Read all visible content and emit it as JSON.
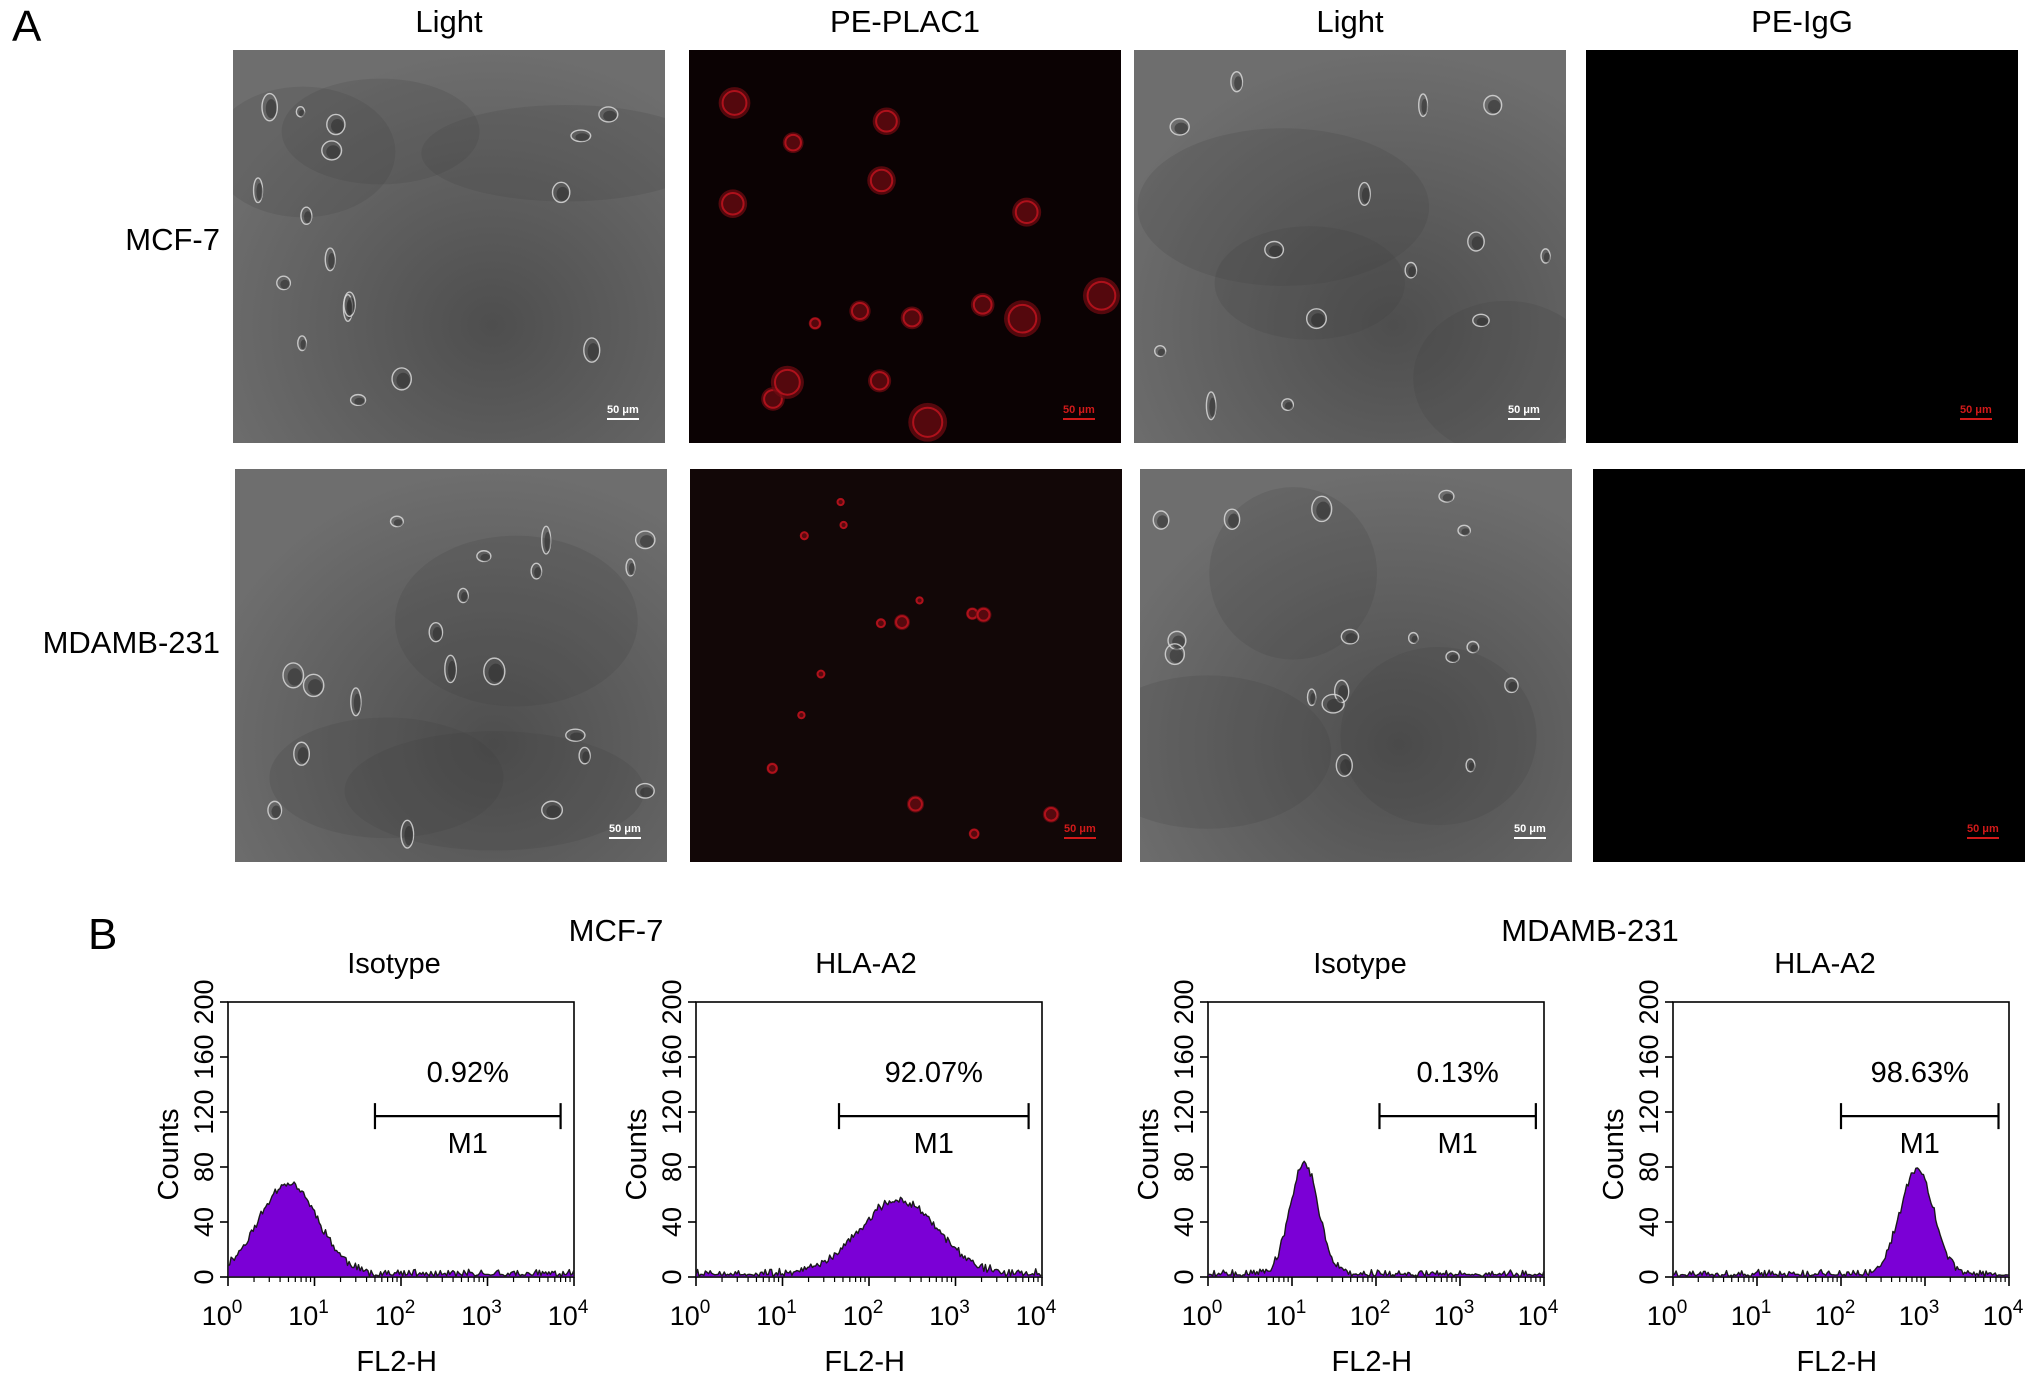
{
  "panel_a": {
    "letter": "A",
    "columns": [
      "Light",
      "PE-PLAC1",
      "Light",
      "PE-IgG"
    ],
    "rows": [
      "MCF-7",
      "MDAMB-231"
    ],
    "scale_bar": "50 μm",
    "image_kinds": [
      "brightfield",
      "red-fluorescence",
      "brightfield",
      "dark"
    ]
  },
  "panel_b": {
    "letter": "B",
    "groups": [
      {
        "title": "MCF-7"
      },
      {
        "title": "MDAMB-231"
      }
    ]
  },
  "chart_data": [
    {
      "type": "area",
      "group": "MCF-7",
      "title": "Isotype",
      "xlabel": "FL2-H",
      "ylabel": "Counts",
      "xscale": "log",
      "xlim": [
        1,
        10000
      ],
      "ylim": [
        0,
        200
      ],
      "xticks": [
        "10^0",
        "10^1",
        "10^2",
        "10^3",
        "10^4"
      ],
      "yticks": [
        "0",
        "40",
        "80",
        "120",
        "160",
        "200"
      ],
      "gate": {
        "label": "M1",
        "x": [
          50,
          7000
        ],
        "percent": "0.92%"
      },
      "peak": {
        "x": 5,
        "y": 66,
        "spread": 0.34
      },
      "color": "#7b00d6"
    },
    {
      "type": "area",
      "group": "MCF-7",
      "title": "HLA-A2",
      "xlabel": "FL2-H",
      "ylabel": "Counts",
      "xscale": "log",
      "xlim": [
        1,
        10000
      ],
      "ylim": [
        0,
        200
      ],
      "xticks": [
        "10^0",
        "10^1",
        "10^2",
        "10^3",
        "10^4"
      ],
      "yticks": [
        "0",
        "40",
        "80",
        "120",
        "160",
        "200"
      ],
      "gate": {
        "label": "M1",
        "x": [
          45,
          7000
        ],
        "percent": "92.07%"
      },
      "peak": {
        "x": 220,
        "y": 54,
        "spread": 0.45
      },
      "color": "#7b00d6"
    },
    {
      "type": "area",
      "group": "MDAMB-231",
      "title": "Isotype",
      "xlabel": "FL2-H",
      "ylabel": "Counts",
      "xscale": "log",
      "xlim": [
        1,
        10000
      ],
      "ylim": [
        0,
        200
      ],
      "xticks": [
        "10^0",
        "10^1",
        "10^2",
        "10^3",
        "10^4"
      ],
      "yticks": [
        "0",
        "40",
        "80",
        "120",
        "160",
        "200"
      ],
      "gate": {
        "label": "M1",
        "x": [
          110,
          8000
        ],
        "percent": "0.13%"
      },
      "peak": {
        "x": 14,
        "y": 80,
        "spread": 0.17
      },
      "color": "#7b00d6"
    },
    {
      "type": "area",
      "group": "MDAMB-231",
      "title": "HLA-A2",
      "xlabel": "FL2-H",
      "ylabel": "Counts",
      "xscale": "log",
      "xlim": [
        1,
        10000
      ],
      "ylim": [
        0,
        200
      ],
      "xticks": [
        "10^0",
        "10^1",
        "10^2",
        "10^3",
        "10^4"
      ],
      "yticks": [
        "0",
        "40",
        "80",
        "120",
        "160",
        "200"
      ],
      "gate": {
        "label": "M1",
        "x": [
          100,
          7500
        ],
        "percent": "98.63%"
      },
      "peak": {
        "x": 800,
        "y": 76,
        "spread": 0.2
      },
      "color": "#7b00d6"
    }
  ]
}
